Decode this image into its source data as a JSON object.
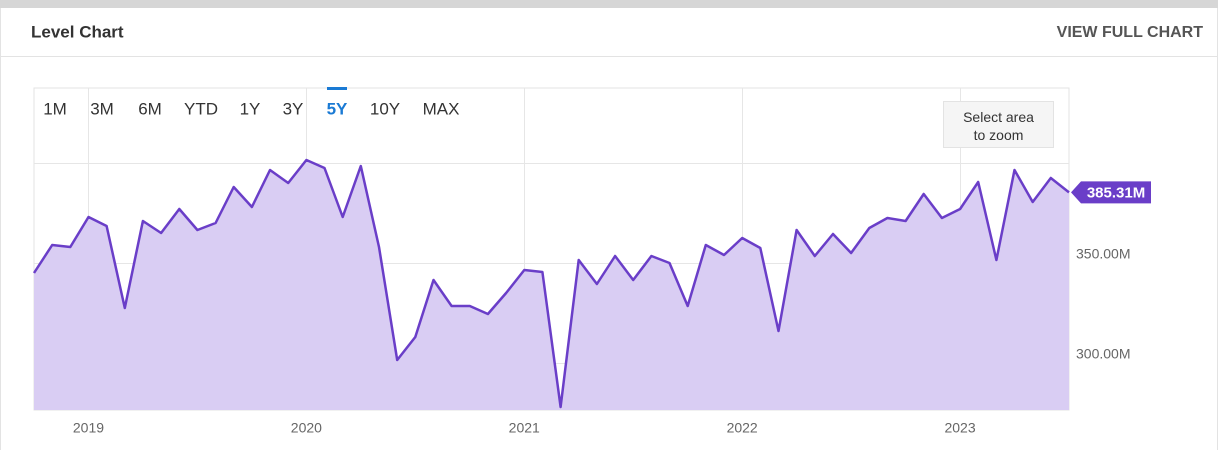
{
  "header": {
    "title": "Level Chart",
    "link": "VIEW FULL CHART"
  },
  "range_buttons": [
    "1M",
    "3M",
    "6M",
    "YTD",
    "1Y",
    "3Y",
    "5Y",
    "10Y",
    "MAX"
  ],
  "selected_range": 6,
  "zoom_hint": "Select area to zoom",
  "chart_data": {
    "type": "area",
    "x": [
      2018.75,
      2018.8333,
      2018.9167,
      2019,
      2019.0833,
      2019.1667,
      2019.25,
      2019.3333,
      2019.4167,
      2019.5,
      2019.5833,
      2019.6667,
      2019.75,
      2019.8333,
      2019.9167,
      2020,
      2020.0833,
      2020.1667,
      2020.25,
      2020.3333,
      2020.4167,
      2020.5,
      2020.5833,
      2020.6667,
      2020.75,
      2020.8333,
      2020.9167,
      2021,
      2021.0833,
      2021.1667,
      2021.25,
      2021.3333,
      2021.4167,
      2021.5,
      2021.5833,
      2021.6667,
      2021.75,
      2021.8333,
      2021.9167,
      2022,
      2022.0833,
      2022.1667,
      2022.25,
      2022.3333,
      2022.4167,
      2022.5,
      2022.5833,
      2022.6667,
      2022.75,
      2022.8333,
      2022.9167,
      2023,
      2023.0833,
      2023.1667,
      2023.25,
      2023.3333,
      2023.4167,
      2023.5
    ],
    "series": [
      {
        "color": "#6a3ec8",
        "fill": "#d9cdf3",
        "values": [
          345,
          359,
          358,
          373,
          368.5,
          327.5,
          371,
          365,
          377,
          366.5,
          370,
          388,
          378,
          396.5,
          390,
          401.5,
          397.5,
          373,
          398.5,
          358,
          301.5,
          313,
          341.5,
          328.5,
          328.5,
          324.5,
          335,
          346.5,
          345.5,
          278,
          351.5,
          339.5,
          353.5,
          341.5,
          353.5,
          350,
          328.5,
          359,
          354,
          362.5,
          357.5,
          316,
          366.5,
          353.5,
          364.5,
          355,
          367.5,
          372.5,
          371,
          384.5,
          372.5,
          377,
          390.5,
          351.5,
          396.5,
          380.5,
          392.5,
          385.31
        ],
        "value_labels": [
          null,
          null,
          null,
          null,
          null,
          null,
          null,
          null,
          null,
          null,
          null,
          null,
          null,
          null,
          null,
          null,
          null,
          null,
          null,
          null,
          null,
          null,
          null,
          null,
          null,
          null,
          null,
          null,
          null,
          null,
          null,
          null,
          null,
          null,
          null,
          null,
          null,
          null,
          null,
          null,
          null,
          null,
          null,
          null,
          null,
          null,
          null,
          null,
          null,
          null,
          null,
          null,
          null,
          null,
          null,
          null,
          null,
          "385.31M"
        ]
      }
    ],
    "xlim": [
      2018.75,
      2023.5
    ],
    "xticks": [
      2019,
      2020,
      2021,
      2022,
      2023
    ],
    "ylim": [
      276.5,
      437.5
    ],
    "yticks": [
      {
        "value": 300,
        "label": "300.00M"
      },
      {
        "value": 350,
        "label": "350.00M"
      }
    ],
    "ygrid": [
      300,
      350,
      400
    ],
    "grid": true
  }
}
